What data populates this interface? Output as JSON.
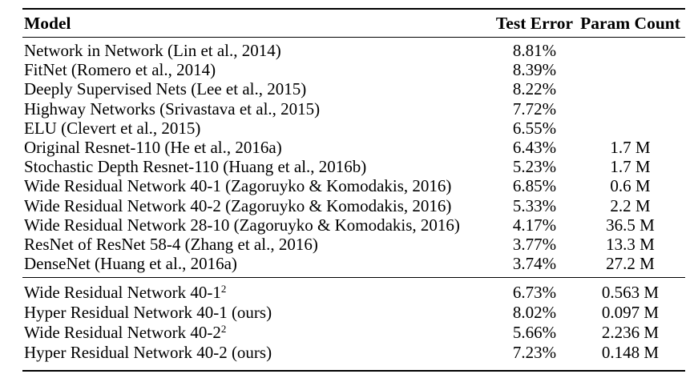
{
  "table": {
    "columns": {
      "model": "Model",
      "test_error": "Test Error",
      "param_count": "Param Count"
    },
    "sections": [
      {
        "rows": [
          {
            "model": "Network in Network (Lin et al., 2014)",
            "sup": "",
            "test_error": "8.81%",
            "param_count": ""
          },
          {
            "model": "FitNet (Romero et al., 2014)",
            "sup": "",
            "test_error": "8.39%",
            "param_count": ""
          },
          {
            "model": "Deeply Supervised Nets (Lee et al., 2015)",
            "sup": "",
            "test_error": "8.22%",
            "param_count": ""
          },
          {
            "model": "Highway Networks (Srivastava et al., 2015)",
            "sup": "",
            "test_error": "7.72%",
            "param_count": ""
          },
          {
            "model": "ELU (Clevert et al., 2015)",
            "sup": "",
            "test_error": "6.55%",
            "param_count": ""
          },
          {
            "model": "Original Resnet-110 (He et al., 2016a)",
            "sup": "",
            "test_error": "6.43%",
            "param_count": "1.7 M"
          },
          {
            "model": "Stochastic Depth Resnet-110 (Huang et al., 2016b)",
            "sup": "",
            "test_error": "5.23%",
            "param_count": "1.7 M"
          },
          {
            "model": "Wide Residual Network 40-1 (Zagoruyko & Komodakis, 2016)",
            "sup": "",
            "test_error": "6.85%",
            "param_count": "0.6 M"
          },
          {
            "model": "Wide Residual Network 40-2 (Zagoruyko & Komodakis, 2016)",
            "sup": "",
            "test_error": "5.33%",
            "param_count": "2.2 M"
          },
          {
            "model": "Wide Residual Network 28-10 (Zagoruyko & Komodakis, 2016)",
            "sup": "",
            "test_error": "4.17%",
            "param_count": "36.5 M"
          },
          {
            "model": "ResNet of ResNet 58-4 (Zhang et al., 2016)",
            "sup": "",
            "test_error": "3.77%",
            "param_count": "13.3 M"
          },
          {
            "model": "DenseNet (Huang et al., 2016a)",
            "sup": "",
            "test_error": "3.74%",
            "param_count": "27.2 M"
          }
        ]
      },
      {
        "rows": [
          {
            "model": "Wide Residual Network 40-1",
            "sup": "2",
            "test_error": "6.73%",
            "param_count": "0.563 M"
          },
          {
            "model": "Hyper Residual Network 40-1 (ours)",
            "sup": "",
            "test_error": "8.02%",
            "param_count": "0.097 M"
          },
          {
            "model": "Wide Residual Network 40-2",
            "sup": "2",
            "test_error": "5.66%",
            "param_count": "2.236 M"
          },
          {
            "model": "Hyper Residual Network 40-2 (ours)",
            "sup": "",
            "test_error": "7.23%",
            "param_count": "0.148 M"
          }
        ]
      }
    ]
  }
}
